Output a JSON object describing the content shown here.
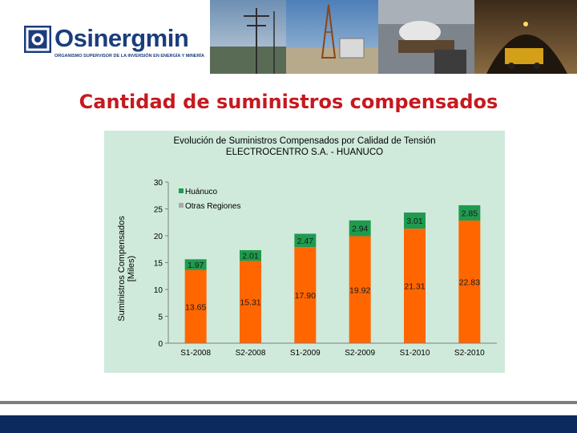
{
  "brand": {
    "name": "Osinergmin",
    "tagline": "ORGANISMO SUPERVISOR DE LA INVERSIÓN EN ENERGÍA Y MINERÍA"
  },
  "page": {
    "title": "Cantidad de suministros compensados"
  },
  "colors": {
    "base": "#ff6600",
    "top": "#1f9b4f",
    "panel": "#cfeadb",
    "title": "#c6191f",
    "brand": "#1b3d7c"
  },
  "chart_data": {
    "type": "bar",
    "stacked": true,
    "title": "Evolución de Suministros Compensados por Calidad de Tensión",
    "subtitle": "ELECTROCENTRO S.A. - HUANUCO",
    "xlabel": "",
    "ylabel": "Suministros Compensados [Miles)",
    "ylim": [
      0,
      30
    ],
    "yticks": [
      0,
      5,
      10,
      15,
      20,
      25,
      30
    ],
    "grid": false,
    "legend_position": "top-left",
    "categories": [
      "S1-2008",
      "S2-2008",
      "S1-2009",
      "S2-2009",
      "S1-2010",
      "S2-2010"
    ],
    "series": [
      {
        "name": "Otras Regiones",
        "color": "#ff6600",
        "values": [
          13.65,
          15.31,
          17.9,
          19.92,
          21.31,
          22.83
        ],
        "labels": [
          "13.65",
          "15.31",
          "17.90",
          "19.92",
          "21.31",
          "22.83"
        ]
      },
      {
        "name": "Huánuco",
        "color": "#1f9b4f",
        "values": [
          1.97,
          2.01,
          2.47,
          2.94,
          3.01,
          2.85
        ],
        "labels": [
          "1.97",
          "2.01",
          "2.47",
          "2.94",
          "3.01",
          "2.85"
        ]
      }
    ],
    "legend": [
      {
        "name": "Huánuco",
        "color": "#1f9b4f"
      },
      {
        "name": "Otras Regiones",
        "color": "#a9a9a9"
      }
    ]
  }
}
